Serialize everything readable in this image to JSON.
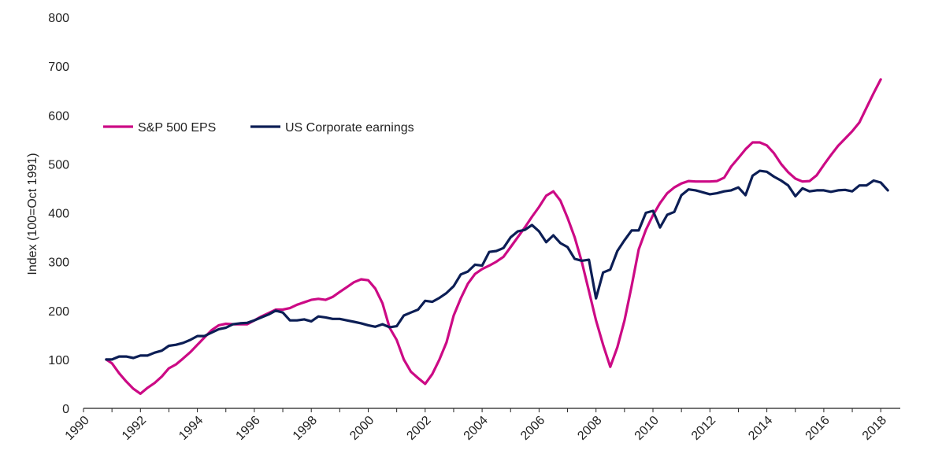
{
  "chart_data": {
    "type": "line",
    "title": "",
    "xlabel": "",
    "ylabel": "Index (100=Oct 1991)",
    "xlim": [
      1990,
      2018.8
    ],
    "ylim": [
      0,
      800
    ],
    "x_ticks": [
      "1990",
      "1992",
      "1994",
      "1996",
      "1998",
      "2000",
      "2002",
      "2004",
      "2006",
      "2008",
      "2010",
      "2012",
      "2014",
      "2016",
      "2018"
    ],
    "y_ticks": [
      "0",
      "100",
      "200",
      "300",
      "400",
      "500",
      "600",
      "700",
      "800"
    ],
    "grid": false,
    "legend_position": "upper-left",
    "series": [
      {
        "name": "S&P 500 EPS",
        "color": "#cc0a85",
        "points": [
          [
            1990.8,
            100
          ],
          [
            1991.0,
            92
          ],
          [
            1991.25,
            72
          ],
          [
            1991.5,
            55
          ],
          [
            1991.75,
            40
          ],
          [
            1992.0,
            30
          ],
          [
            1992.25,
            42
          ],
          [
            1992.5,
            52
          ],
          [
            1992.75,
            65
          ],
          [
            1993.0,
            82
          ],
          [
            1993.25,
            90
          ],
          [
            1993.5,
            102
          ],
          [
            1993.75,
            115
          ],
          [
            1994.0,
            130
          ],
          [
            1994.25,
            145
          ],
          [
            1994.5,
            160
          ],
          [
            1994.75,
            170
          ],
          [
            1995.0,
            173
          ],
          [
            1995.25,
            172
          ],
          [
            1995.5,
            172
          ],
          [
            1995.75,
            172
          ],
          [
            1996.0,
            180
          ],
          [
            1996.25,
            188
          ],
          [
            1996.5,
            195
          ],
          [
            1996.75,
            202
          ],
          [
            1997.0,
            202
          ],
          [
            1997.25,
            205
          ],
          [
            1997.5,
            212
          ],
          [
            1997.75,
            217
          ],
          [
            1998.0,
            222
          ],
          [
            1998.25,
            224
          ],
          [
            1998.5,
            222
          ],
          [
            1998.75,
            228
          ],
          [
            1999.0,
            238
          ],
          [
            1999.25,
            248
          ],
          [
            1999.5,
            258
          ],
          [
            1999.75,
            264
          ],
          [
            2000.0,
            262
          ],
          [
            2000.25,
            245
          ],
          [
            2000.5,
            215
          ],
          [
            2000.75,
            165
          ],
          [
            2001.0,
            140
          ],
          [
            2001.25,
            100
          ],
          [
            2001.5,
            75
          ],
          [
            2001.75,
            62
          ],
          [
            2002.0,
            50
          ],
          [
            2002.25,
            70
          ],
          [
            2002.5,
            100
          ],
          [
            2002.75,
            135
          ],
          [
            2003.0,
            190
          ],
          [
            2003.25,
            225
          ],
          [
            2003.5,
            255
          ],
          [
            2003.75,
            275
          ],
          [
            2004.0,
            285
          ],
          [
            2004.25,
            292
          ],
          [
            2004.5,
            300
          ],
          [
            2004.75,
            310
          ],
          [
            2005.0,
            330
          ],
          [
            2005.25,
            350
          ],
          [
            2005.5,
            370
          ],
          [
            2005.75,
            392
          ],
          [
            2006.0,
            412
          ],
          [
            2006.25,
            435
          ],
          [
            2006.5,
            444
          ],
          [
            2006.75,
            425
          ],
          [
            2007.0,
            390
          ],
          [
            2007.25,
            350
          ],
          [
            2007.5,
            300
          ],
          [
            2007.75,
            240
          ],
          [
            2008.0,
            180
          ],
          [
            2008.25,
            130
          ],
          [
            2008.5,
            85
          ],
          [
            2008.75,
            125
          ],
          [
            2009.0,
            180
          ],
          [
            2009.25,
            250
          ],
          [
            2009.5,
            325
          ],
          [
            2009.75,
            365
          ],
          [
            2010.0,
            395
          ],
          [
            2010.25,
            420
          ],
          [
            2010.5,
            440
          ],
          [
            2010.75,
            452
          ],
          [
            2011.0,
            460
          ],
          [
            2011.25,
            465
          ],
          [
            2011.5,
            464
          ],
          [
            2011.75,
            464
          ],
          [
            2012.0,
            464
          ],
          [
            2012.25,
            465
          ],
          [
            2012.5,
            472
          ],
          [
            2012.75,
            495
          ],
          [
            2013.0,
            512
          ],
          [
            2013.25,
            530
          ],
          [
            2013.5,
            544
          ],
          [
            2013.75,
            544
          ],
          [
            2014.0,
            538
          ],
          [
            2014.25,
            522
          ],
          [
            2014.5,
            500
          ],
          [
            2014.75,
            483
          ],
          [
            2015.0,
            470
          ],
          [
            2015.25,
            464
          ],
          [
            2015.5,
            465
          ],
          [
            2015.75,
            477
          ],
          [
            2016.0,
            498
          ],
          [
            2016.25,
            518
          ],
          [
            2016.5,
            537
          ],
          [
            2016.75,
            552
          ],
          [
            2017.0,
            567
          ],
          [
            2017.25,
            585
          ],
          [
            2017.5,
            615
          ],
          [
            2017.75,
            645
          ],
          [
            2018.0,
            673
          ]
        ]
      },
      {
        "name": "US Corporate earnings",
        "color": "#0c1e55",
        "points": [
          [
            1990.8,
            100
          ],
          [
            1991.0,
            100
          ],
          [
            1991.25,
            106
          ],
          [
            1991.5,
            106
          ],
          [
            1991.75,
            103
          ],
          [
            1992.0,
            108
          ],
          [
            1992.25,
            108
          ],
          [
            1992.5,
            114
          ],
          [
            1992.75,
            118
          ],
          [
            1993.0,
            128
          ],
          [
            1993.25,
            130
          ],
          [
            1993.5,
            134
          ],
          [
            1993.75,
            140
          ],
          [
            1994.0,
            148
          ],
          [
            1994.25,
            148
          ],
          [
            1994.5,
            155
          ],
          [
            1994.75,
            162
          ],
          [
            1995.0,
            165
          ],
          [
            1995.25,
            172
          ],
          [
            1995.5,
            174
          ],
          [
            1995.75,
            175
          ],
          [
            1996.0,
            180
          ],
          [
            1996.25,
            186
          ],
          [
            1996.5,
            192
          ],
          [
            1996.75,
            200
          ],
          [
            1997.0,
            196
          ],
          [
            1997.25,
            180
          ],
          [
            1997.5,
            180
          ],
          [
            1997.75,
            182
          ],
          [
            1998.0,
            178
          ],
          [
            1998.25,
            188
          ],
          [
            1998.5,
            186
          ],
          [
            1998.75,
            183
          ],
          [
            1999.0,
            183
          ],
          [
            1999.25,
            180
          ],
          [
            1999.5,
            177
          ],
          [
            1999.75,
            174
          ],
          [
            2000.0,
            170
          ],
          [
            2000.25,
            167
          ],
          [
            2000.5,
            172
          ],
          [
            2000.75,
            166
          ],
          [
            2001.0,
            168
          ],
          [
            2001.25,
            190
          ],
          [
            2001.5,
            196
          ],
          [
            2001.75,
            202
          ],
          [
            2002.0,
            220
          ],
          [
            2002.25,
            218
          ],
          [
            2002.5,
            226
          ],
          [
            2002.75,
            236
          ],
          [
            2003.0,
            250
          ],
          [
            2003.25,
            274
          ],
          [
            2003.5,
            280
          ],
          [
            2003.75,
            294
          ],
          [
            2004.0,
            292
          ],
          [
            2004.25,
            320
          ],
          [
            2004.5,
            322
          ],
          [
            2004.75,
            328
          ],
          [
            2005.0,
            350
          ],
          [
            2005.25,
            362
          ],
          [
            2005.5,
            365
          ],
          [
            2005.75,
            375
          ],
          [
            2006.0,
            362
          ],
          [
            2006.25,
            340
          ],
          [
            2006.5,
            354
          ],
          [
            2006.75,
            338
          ],
          [
            2007.0,
            330
          ],
          [
            2007.25,
            306
          ],
          [
            2007.5,
            302
          ],
          [
            2007.75,
            304
          ],
          [
            2008.0,
            225
          ],
          [
            2008.25,
            278
          ],
          [
            2008.5,
            284
          ],
          [
            2008.75,
            322
          ],
          [
            2009.0,
            344
          ],
          [
            2009.25,
            364
          ],
          [
            2009.5,
            364
          ],
          [
            2009.75,
            400
          ],
          [
            2010.0,
            404
          ],
          [
            2010.25,
            370
          ],
          [
            2010.5,
            396
          ],
          [
            2010.75,
            402
          ],
          [
            2011.0,
            436
          ],
          [
            2011.25,
            448
          ],
          [
            2011.5,
            446
          ],
          [
            2011.75,
            442
          ],
          [
            2012.0,
            438
          ],
          [
            2012.25,
            440
          ],
          [
            2012.5,
            444
          ],
          [
            2012.75,
            446
          ],
          [
            2013.0,
            452
          ],
          [
            2013.25,
            436
          ],
          [
            2013.5,
            476
          ],
          [
            2013.75,
            486
          ],
          [
            2014.0,
            484
          ],
          [
            2014.25,
            474
          ],
          [
            2014.5,
            466
          ],
          [
            2014.75,
            456
          ],
          [
            2015.0,
            434
          ],
          [
            2015.25,
            450
          ],
          [
            2015.5,
            444
          ],
          [
            2015.75,
            446
          ],
          [
            2016.0,
            446
          ],
          [
            2016.25,
            443
          ],
          [
            2016.5,
            446
          ],
          [
            2016.75,
            447
          ],
          [
            2017.0,
            444
          ],
          [
            2017.25,
            456
          ],
          [
            2017.5,
            456
          ],
          [
            2017.75,
            466
          ],
          [
            2018.0,
            462
          ],
          [
            2018.25,
            446
          ]
        ]
      }
    ]
  }
}
